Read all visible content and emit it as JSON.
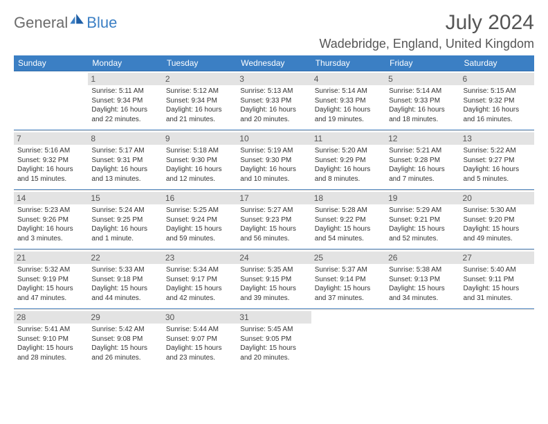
{
  "brand": {
    "name1": "General",
    "name2": "Blue"
  },
  "title": "July 2024",
  "location": "Wadebridge, England, United Kingdom",
  "colors": {
    "header_bg": "#3b7fc4",
    "header_text": "#ffffff",
    "daynum_bg": "#e3e3e3",
    "text": "#333333",
    "rule_top": "#5a8fc7",
    "rule_bot": "#cccccc"
  },
  "daynames": [
    "Sunday",
    "Monday",
    "Tuesday",
    "Wednesday",
    "Thursday",
    "Friday",
    "Saturday"
  ],
  "weeks": [
    [
      null,
      {
        "n": "1",
        "sr": "Sunrise: 5:11 AM",
        "ss": "Sunset: 9:34 PM",
        "d1": "Daylight: 16 hours",
        "d2": "and 22 minutes."
      },
      {
        "n": "2",
        "sr": "Sunrise: 5:12 AM",
        "ss": "Sunset: 9:34 PM",
        "d1": "Daylight: 16 hours",
        "d2": "and 21 minutes."
      },
      {
        "n": "3",
        "sr": "Sunrise: 5:13 AM",
        "ss": "Sunset: 9:33 PM",
        "d1": "Daylight: 16 hours",
        "d2": "and 20 minutes."
      },
      {
        "n": "4",
        "sr": "Sunrise: 5:14 AM",
        "ss": "Sunset: 9:33 PM",
        "d1": "Daylight: 16 hours",
        "d2": "and 19 minutes."
      },
      {
        "n": "5",
        "sr": "Sunrise: 5:14 AM",
        "ss": "Sunset: 9:33 PM",
        "d1": "Daylight: 16 hours",
        "d2": "and 18 minutes."
      },
      {
        "n": "6",
        "sr": "Sunrise: 5:15 AM",
        "ss": "Sunset: 9:32 PM",
        "d1": "Daylight: 16 hours",
        "d2": "and 16 minutes."
      }
    ],
    [
      {
        "n": "7",
        "sr": "Sunrise: 5:16 AM",
        "ss": "Sunset: 9:32 PM",
        "d1": "Daylight: 16 hours",
        "d2": "and 15 minutes."
      },
      {
        "n": "8",
        "sr": "Sunrise: 5:17 AM",
        "ss": "Sunset: 9:31 PM",
        "d1": "Daylight: 16 hours",
        "d2": "and 13 minutes."
      },
      {
        "n": "9",
        "sr": "Sunrise: 5:18 AM",
        "ss": "Sunset: 9:30 PM",
        "d1": "Daylight: 16 hours",
        "d2": "and 12 minutes."
      },
      {
        "n": "10",
        "sr": "Sunrise: 5:19 AM",
        "ss": "Sunset: 9:30 PM",
        "d1": "Daylight: 16 hours",
        "d2": "and 10 minutes."
      },
      {
        "n": "11",
        "sr": "Sunrise: 5:20 AM",
        "ss": "Sunset: 9:29 PM",
        "d1": "Daylight: 16 hours",
        "d2": "and 8 minutes."
      },
      {
        "n": "12",
        "sr": "Sunrise: 5:21 AM",
        "ss": "Sunset: 9:28 PM",
        "d1": "Daylight: 16 hours",
        "d2": "and 7 minutes."
      },
      {
        "n": "13",
        "sr": "Sunrise: 5:22 AM",
        "ss": "Sunset: 9:27 PM",
        "d1": "Daylight: 16 hours",
        "d2": "and 5 minutes."
      }
    ],
    [
      {
        "n": "14",
        "sr": "Sunrise: 5:23 AM",
        "ss": "Sunset: 9:26 PM",
        "d1": "Daylight: 16 hours",
        "d2": "and 3 minutes."
      },
      {
        "n": "15",
        "sr": "Sunrise: 5:24 AM",
        "ss": "Sunset: 9:25 PM",
        "d1": "Daylight: 16 hours",
        "d2": "and 1 minute."
      },
      {
        "n": "16",
        "sr": "Sunrise: 5:25 AM",
        "ss": "Sunset: 9:24 PM",
        "d1": "Daylight: 15 hours",
        "d2": "and 59 minutes."
      },
      {
        "n": "17",
        "sr": "Sunrise: 5:27 AM",
        "ss": "Sunset: 9:23 PM",
        "d1": "Daylight: 15 hours",
        "d2": "and 56 minutes."
      },
      {
        "n": "18",
        "sr": "Sunrise: 5:28 AM",
        "ss": "Sunset: 9:22 PM",
        "d1": "Daylight: 15 hours",
        "d2": "and 54 minutes."
      },
      {
        "n": "19",
        "sr": "Sunrise: 5:29 AM",
        "ss": "Sunset: 9:21 PM",
        "d1": "Daylight: 15 hours",
        "d2": "and 52 minutes."
      },
      {
        "n": "20",
        "sr": "Sunrise: 5:30 AM",
        "ss": "Sunset: 9:20 PM",
        "d1": "Daylight: 15 hours",
        "d2": "and 49 minutes."
      }
    ],
    [
      {
        "n": "21",
        "sr": "Sunrise: 5:32 AM",
        "ss": "Sunset: 9:19 PM",
        "d1": "Daylight: 15 hours",
        "d2": "and 47 minutes."
      },
      {
        "n": "22",
        "sr": "Sunrise: 5:33 AM",
        "ss": "Sunset: 9:18 PM",
        "d1": "Daylight: 15 hours",
        "d2": "and 44 minutes."
      },
      {
        "n": "23",
        "sr": "Sunrise: 5:34 AM",
        "ss": "Sunset: 9:17 PM",
        "d1": "Daylight: 15 hours",
        "d2": "and 42 minutes."
      },
      {
        "n": "24",
        "sr": "Sunrise: 5:35 AM",
        "ss": "Sunset: 9:15 PM",
        "d1": "Daylight: 15 hours",
        "d2": "and 39 minutes."
      },
      {
        "n": "25",
        "sr": "Sunrise: 5:37 AM",
        "ss": "Sunset: 9:14 PM",
        "d1": "Daylight: 15 hours",
        "d2": "and 37 minutes."
      },
      {
        "n": "26",
        "sr": "Sunrise: 5:38 AM",
        "ss": "Sunset: 9:13 PM",
        "d1": "Daylight: 15 hours",
        "d2": "and 34 minutes."
      },
      {
        "n": "27",
        "sr": "Sunrise: 5:40 AM",
        "ss": "Sunset: 9:11 PM",
        "d1": "Daylight: 15 hours",
        "d2": "and 31 minutes."
      }
    ],
    [
      {
        "n": "28",
        "sr": "Sunrise: 5:41 AM",
        "ss": "Sunset: 9:10 PM",
        "d1": "Daylight: 15 hours",
        "d2": "and 28 minutes."
      },
      {
        "n": "29",
        "sr": "Sunrise: 5:42 AM",
        "ss": "Sunset: 9:08 PM",
        "d1": "Daylight: 15 hours",
        "d2": "and 26 minutes."
      },
      {
        "n": "30",
        "sr": "Sunrise: 5:44 AM",
        "ss": "Sunset: 9:07 PM",
        "d1": "Daylight: 15 hours",
        "d2": "and 23 minutes."
      },
      {
        "n": "31",
        "sr": "Sunrise: 5:45 AM",
        "ss": "Sunset: 9:05 PM",
        "d1": "Daylight: 15 hours",
        "d2": "and 20 minutes."
      },
      null,
      null,
      null
    ]
  ]
}
